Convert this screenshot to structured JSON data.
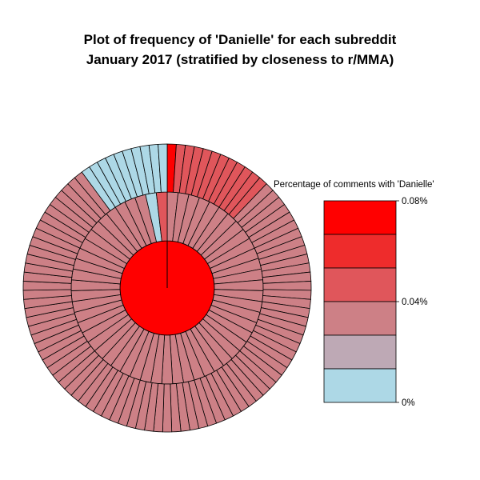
{
  "chart_data": {
    "type": "sunburst",
    "title": "Plot of frequency of 'Danielle' for each subreddit",
    "subtitle": "January 2017 (stratified by closeness to r/MMA)",
    "center": {
      "percent": 0.08
    },
    "rings": [
      {
        "name": "inner",
        "segment_percents": [
          0.037,
          0.037,
          0.037,
          0.037,
          0.037,
          0.037,
          0.037,
          0.037,
          0.037,
          0.037,
          0.037,
          0.037,
          0.037,
          0.037,
          0.037,
          0.037,
          0.037,
          0.037,
          0.037,
          0.037,
          0.037,
          0.037,
          0.037,
          0.037,
          0.037,
          0.037,
          0.037,
          0.037,
          0.037,
          0.037,
          0.037,
          0.037,
          0.037,
          0.037,
          0.037,
          0.037,
          0.037,
          0.037,
          0.037,
          0.037,
          0.037,
          0.037,
          0.037,
          0.037,
          0.037,
          0.037,
          0.037,
          0.037,
          0.037,
          0.037,
          0.037,
          0.037,
          0.037,
          0.005,
          0.046
        ]
      },
      {
        "name": "outer",
        "segment_percents": [
          0.08,
          0.046,
          0.046,
          0.046,
          0.046,
          0.046,
          0.046,
          0.046,
          0.046,
          0.046,
          0.046,
          0.046,
          0.037,
          0.037,
          0.037,
          0.037,
          0.037,
          0.037,
          0.037,
          0.037,
          0.037,
          0.037,
          0.037,
          0.037,
          0.037,
          0.037,
          0.037,
          0.037,
          0.037,
          0.037,
          0.037,
          0.037,
          0.037,
          0.037,
          0.037,
          0.037,
          0.037,
          0.037,
          0.037,
          0.037,
          0.037,
          0.037,
          0.037,
          0.037,
          0.037,
          0.037,
          0.037,
          0.037,
          0.037,
          0.037,
          0.037,
          0.037,
          0.037,
          0.037,
          0.037,
          0.037,
          0.037,
          0.037,
          0.037,
          0.037,
          0.037,
          0.037,
          0.037,
          0.037,
          0.037,
          0.037,
          0.037,
          0.037,
          0.037,
          0.037,
          0.037,
          0.037,
          0.037,
          0.037,
          0.037,
          0.037,
          0.037,
          0.037,
          0.037,
          0.037,
          0.037,
          0.037,
          0.037,
          0.037,
          0.037,
          0.037,
          0.037,
          0.037,
          0.037,
          0.005,
          0.005,
          0.005,
          0.005,
          0.005,
          0.005,
          0.005,
          0.005,
          0.005,
          0.005
        ]
      }
    ],
    "legend": {
      "title": "Percentage of comments with 'Danielle'",
      "placement": "right",
      "tick_labels": [
        {
          "value": 0.08,
          "label": "0.08%"
        },
        {
          "value": 0.04,
          "label": "0.04%"
        },
        {
          "value": 0,
          "label": "0%"
        }
      ],
      "bins": [
        {
          "min": 0.0667,
          "max": 0.08,
          "color": "#FF0000"
        },
        {
          "min": 0.0533,
          "max": 0.0667,
          "color": "#EE2C2C"
        },
        {
          "min": 0.04,
          "max": 0.0533,
          "color": "#E0565B"
        },
        {
          "min": 0.0267,
          "max": 0.04,
          "color": "#CD8086"
        },
        {
          "min": 0.0133,
          "max": 0.0267,
          "color": "#BEA9B5"
        },
        {
          "min": 0,
          "max": 0.0133,
          "color": "#ADD8E6"
        }
      ]
    }
  }
}
